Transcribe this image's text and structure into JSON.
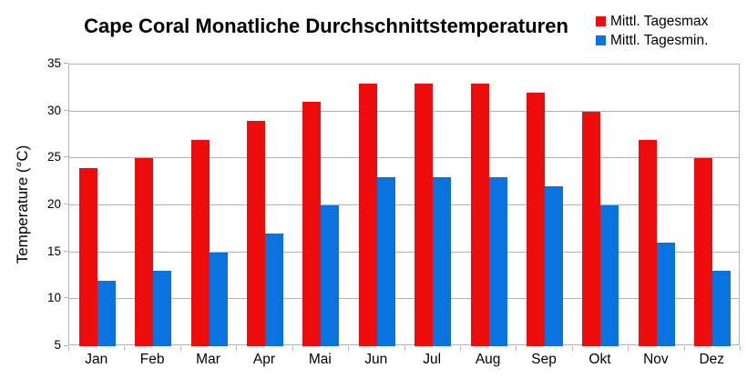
{
  "chart_data": {
    "type": "bar",
    "title": "Cape Coral Monatliche Durchschnittstemperaturen",
    "categories": [
      "Jan",
      "Feb",
      "Mar",
      "Apr",
      "Mai",
      "Jun",
      "Jul",
      "Aug",
      "Sep",
      "Okt",
      "Nov",
      "Dez"
    ],
    "series": [
      {
        "name": "Mittl. Tagesmax",
        "color": "#ee0d0d",
        "values": [
          24,
          25,
          27,
          29,
          31,
          33,
          33,
          33,
          32,
          30,
          27,
          25
        ]
      },
      {
        "name": "Mittl. Tagesmin.",
        "color": "#0b73e0",
        "values": [
          12,
          13,
          15,
          17,
          20,
          23,
          23,
          23,
          22,
          20,
          16,
          13
        ]
      }
    ],
    "xlabel": "",
    "ylabel": "Temperature (°C)",
    "ylim": [
      5,
      35
    ],
    "y_ticks": [
      5,
      10,
      15,
      20,
      25,
      30,
      35
    ],
    "grid": true,
    "gridline_color": "#b3b3b3",
    "legend_position": "top-right",
    "background_color": "#ffffff",
    "text_color": "#000000"
  }
}
